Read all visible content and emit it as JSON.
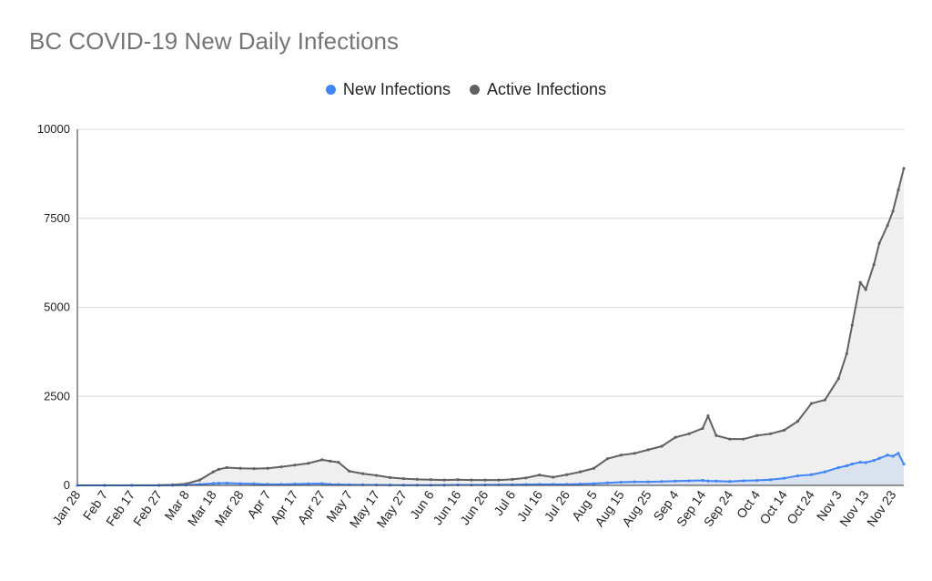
{
  "chart_data": {
    "type": "area",
    "title": "BC COVID-19 New Daily Infections",
    "xlabel": "",
    "ylabel": "",
    "ylim": [
      0,
      10000
    ],
    "y_ticks": [
      "0",
      "2500",
      "5000",
      "7500",
      "10000"
    ],
    "y_tick_values": [
      0,
      2500,
      5000,
      7500,
      10000
    ],
    "x_tick_labels": [
      "Jan 28",
      "Feb 7",
      "Feb 17",
      "Feb 27",
      "Mar 8",
      "Mar 18",
      "Mar 28",
      "Apr 7",
      "Apr 17",
      "Apr 27",
      "May 7",
      "May 17",
      "May 27",
      "Jun 6",
      "Jun 16",
      "Jun 26",
      "Jul 6",
      "Jul 16",
      "Jul 26",
      "Aug 5",
      "Aug 15",
      "Aug 25",
      "Sep 4",
      "Sep 14",
      "Sep 24",
      "Oct 4",
      "Oct 14",
      "Oct 24",
      "Nov 3",
      "Nov 13",
      "Nov 23"
    ],
    "grid": true,
    "legend_position": "top",
    "x": [
      "Jan 28",
      "Feb 7",
      "Feb 17",
      "Feb 27",
      "Mar 3",
      "Mar 8",
      "Mar 13",
      "Mar 18",
      "Mar 20",
      "Mar 23",
      "Mar 28",
      "Apr 2",
      "Apr 7",
      "Apr 12",
      "Apr 17",
      "Apr 22",
      "Apr 27",
      "Apr 30",
      "May 3",
      "May 7",
      "May 12",
      "May 17",
      "May 22",
      "May 27",
      "Jun 1",
      "Jun 6",
      "Jun 11",
      "Jun 16",
      "Jun 21",
      "Jun 26",
      "Jul 1",
      "Jul 6",
      "Jul 11",
      "Jul 16",
      "Jul 21",
      "Jul 26",
      "Jul 31",
      "Aug 5",
      "Aug 10",
      "Aug 15",
      "Aug 20",
      "Aug 25",
      "Aug 30",
      "Sep 4",
      "Sep 9",
      "Sep 14",
      "Sep 16",
      "Sep 19",
      "Sep 24",
      "Sep 29",
      "Oct 4",
      "Oct 9",
      "Oct 14",
      "Oct 19",
      "Oct 24",
      "Oct 29",
      "Nov 3",
      "Nov 6",
      "Nov 8",
      "Nov 11",
      "Nov 13",
      "Nov 16",
      "Nov 18",
      "Nov 21",
      "Nov 23",
      "Nov 25",
      "Nov 27"
    ],
    "series": [
      {
        "name": "New Infections",
        "color": "#4285f4",
        "values": [
          0,
          0,
          0,
          0,
          2,
          10,
          30,
          55,
          60,
          65,
          50,
          45,
          30,
          30,
          40,
          45,
          50,
          30,
          25,
          18,
          15,
          12,
          10,
          8,
          6,
          8,
          10,
          12,
          14,
          16,
          18,
          20,
          25,
          30,
          28,
          30,
          40,
          50,
          70,
          90,
          100,
          100,
          110,
          120,
          130,
          140,
          125,
          120,
          110,
          130,
          140,
          160,
          200,
          270,
          300,
          380,
          500,
          550,
          600,
          650,
          640,
          700,
          760,
          850,
          820,
          900,
          600
        ]
      },
      {
        "name": "Active Infections",
        "color": "#616161",
        "values": [
          1,
          1,
          2,
          5,
          15,
          45,
          150,
          380,
          450,
          500,
          480,
          470,
          480,
          520,
          570,
          620,
          720,
          680,
          650,
          400,
          330,
          280,
          220,
          190,
          170,
          160,
          150,
          160,
          150,
          150,
          150,
          170,
          210,
          290,
          230,
          300,
          380,
          480,
          750,
          850,
          900,
          1000,
          1100,
          1350,
          1450,
          1600,
          1950,
          1400,
          1300,
          1300,
          1400,
          1450,
          1550,
          1800,
          2300,
          2400,
          3000,
          3700,
          4500,
          5700,
          5500,
          6200,
          6800,
          7300,
          7700,
          8300,
          8900
        ]
      }
    ]
  }
}
